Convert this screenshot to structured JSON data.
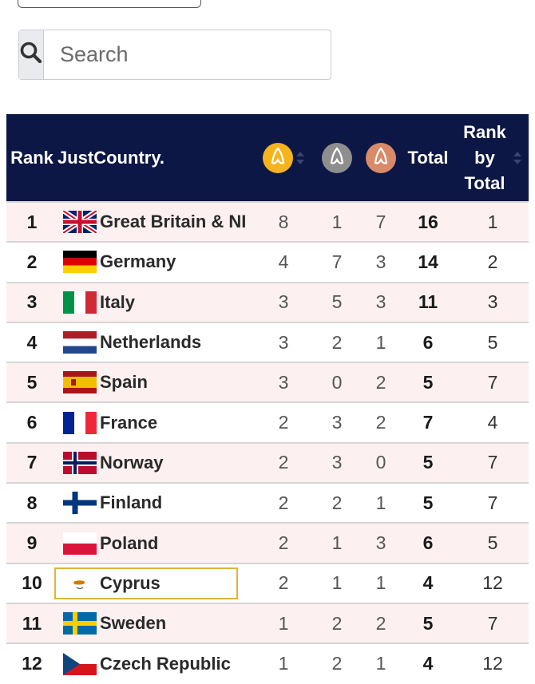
{
  "search": {
    "placeholder": "Search"
  },
  "table": {
    "headers": {
      "rank": "Rank",
      "country": "JustCountry.",
      "total": "Total",
      "rank_by_total": [
        "Rank",
        "by",
        "Total"
      ]
    },
    "medal_icons": [
      "gold-medal-icon",
      "silver-medal-icon",
      "bronze-medal-icon"
    ],
    "colors": {
      "header_bg": "#0c1745",
      "gold": "#f5b41c",
      "silver": "#8e8e8e",
      "bronze": "#d98a68",
      "row_stripe": "#fdf0f0",
      "highlight_border": "#e2b33c"
    },
    "rows": [
      {
        "rank": "1",
        "country": "Great Britain & NI",
        "flag": "uk-flag-icon",
        "gold": "8",
        "silver": "1",
        "bronze": "7",
        "total": "16",
        "rank_by_total": "1"
      },
      {
        "rank": "2",
        "country": "Germany",
        "flag": "germany-flag-icon",
        "gold": "4",
        "silver": "7",
        "bronze": "3",
        "total": "14",
        "rank_by_total": "2"
      },
      {
        "rank": "3",
        "country": "Italy",
        "flag": "italy-flag-icon",
        "gold": "3",
        "silver": "5",
        "bronze": "3",
        "total": "11",
        "rank_by_total": "3"
      },
      {
        "rank": "4",
        "country": "Netherlands",
        "flag": "netherlands-flag-icon",
        "gold": "3",
        "silver": "2",
        "bronze": "1",
        "total": "6",
        "rank_by_total": "5"
      },
      {
        "rank": "5",
        "country": "Spain",
        "flag": "spain-flag-icon",
        "gold": "3",
        "silver": "0",
        "bronze": "2",
        "total": "5",
        "rank_by_total": "7"
      },
      {
        "rank": "6",
        "country": "France",
        "flag": "france-flag-icon",
        "gold": "2",
        "silver": "3",
        "bronze": "2",
        "total": "7",
        "rank_by_total": "4"
      },
      {
        "rank": "7",
        "country": "Norway",
        "flag": "norway-flag-icon",
        "gold": "2",
        "silver": "3",
        "bronze": "0",
        "total": "5",
        "rank_by_total": "7"
      },
      {
        "rank": "8",
        "country": "Finland",
        "flag": "finland-flag-icon",
        "gold": "2",
        "silver": "2",
        "bronze": "1",
        "total": "5",
        "rank_by_total": "7"
      },
      {
        "rank": "9",
        "country": "Poland",
        "flag": "poland-flag-icon",
        "gold": "2",
        "silver": "1",
        "bronze": "3",
        "total": "6",
        "rank_by_total": "5"
      },
      {
        "rank": "10",
        "country": "Cyprus",
        "flag": "cyprus-flag-icon",
        "gold": "2",
        "silver": "1",
        "bronze": "1",
        "total": "4",
        "rank_by_total": "12",
        "highlighted": true
      },
      {
        "rank": "11",
        "country": "Sweden",
        "flag": "sweden-flag-icon",
        "gold": "1",
        "silver": "2",
        "bronze": "2",
        "total": "5",
        "rank_by_total": "7"
      },
      {
        "rank": "12",
        "country": "Czech Republic",
        "flag": "czech-flag-icon",
        "gold": "1",
        "silver": "2",
        "bronze": "1",
        "total": "4",
        "rank_by_total": "12"
      }
    ]
  }
}
